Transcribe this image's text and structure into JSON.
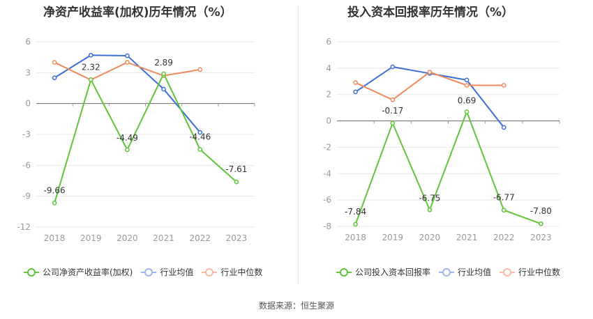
{
  "charts": [
    {
      "title": "净资产收益率(加权)历年情况（%）",
      "legend": [
        "公司净资产收益率(加权)",
        "行业均值",
        "行业中位数"
      ]
    },
    {
      "title": "投入资本回报率历年情况（%）",
      "legend": [
        "公司投入资本回报率",
        "行业均值",
        "行业中位数"
      ]
    }
  ],
  "source": "数据来源：恒生聚源",
  "colors": {
    "company": "#5fc53a",
    "mean": "#3c6fd9",
    "median": "#f08a5d",
    "grid": "#e8e8e8",
    "axis": "#999999"
  },
  "chart_data": [
    {
      "type": "line",
      "title": "净资产收益率(加权)历年情况（%）",
      "x": [
        "2018",
        "2019",
        "2020",
        "2021",
        "2022",
        "2023"
      ],
      "ylim": [
        -12,
        6
      ],
      "yticks": [
        6,
        3,
        0,
        -3,
        -6,
        -9,
        -12
      ],
      "series": [
        {
          "name": "公司净资产收益率(加权)",
          "values": [
            -9.66,
            2.32,
            -4.49,
            2.89,
            -4.46,
            -7.61
          ],
          "labels": [
            "-9.66",
            "2.32",
            "-4.49",
            "2.89",
            "-4.46",
            "-7.61"
          ]
        },
        {
          "name": "行业均值",
          "values": [
            2.5,
            4.7,
            4.65,
            1.4,
            -2.8,
            null
          ]
        },
        {
          "name": "行业中位数",
          "values": [
            4.0,
            2.3,
            4.0,
            2.7,
            3.3,
            null
          ]
        }
      ]
    },
    {
      "type": "line",
      "title": "投入资本回报率历年情况（%）",
      "x": [
        "2018",
        "2019",
        "2020",
        "2021",
        "2022",
        "2023"
      ],
      "ylim": [
        -8,
        6
      ],
      "yticks": [
        6,
        4,
        2,
        0,
        -2,
        -4,
        -6,
        -8
      ],
      "series": [
        {
          "name": "公司投入资本回报率",
          "values": [
            -7.84,
            -0.17,
            -6.75,
            0.69,
            -6.77,
            -7.8
          ],
          "labels": [
            "-7.84",
            "-0.17",
            "-6.75",
            "0.69",
            "-6.77",
            "-7.80"
          ]
        },
        {
          "name": "行业均值",
          "values": [
            2.2,
            4.1,
            3.6,
            3.1,
            -0.5,
            null
          ]
        },
        {
          "name": "行业中位数",
          "values": [
            2.9,
            1.6,
            3.7,
            2.7,
            2.7,
            null
          ]
        }
      ]
    }
  ]
}
